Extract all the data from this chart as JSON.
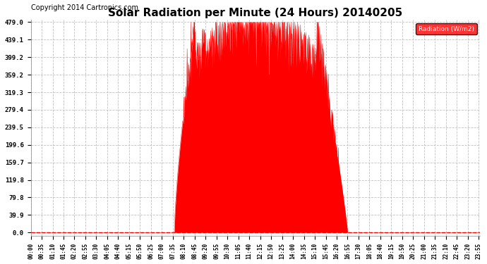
{
  "title": "Solar Radiation per Minute (24 Hours) 20140205",
  "copyright_text": "Copyright 2014 Cartronics.com",
  "legend_label": "Radiation (W/m2)",
  "y_ticks": [
    0.0,
    39.9,
    79.8,
    119.8,
    159.7,
    199.6,
    239.5,
    279.4,
    319.3,
    359.2,
    399.2,
    439.1,
    479.0
  ],
  "y_max": 479.0,
  "fill_color": "#FF0000",
  "line_color": "#FF0000",
  "bg_color": "#FFFFFF",
  "grid_color": "#BBBBBB",
  "legend_bg": "#FF0000",
  "legend_text_color": "#FFFFFF",
  "title_fontsize": 11,
  "copyright_fontsize": 7,
  "total_minutes": 1440,
  "sunrise_minute": 460,
  "sunset_minute": 1015,
  "peak_value": 479.0,
  "x_tick_interval": 35
}
